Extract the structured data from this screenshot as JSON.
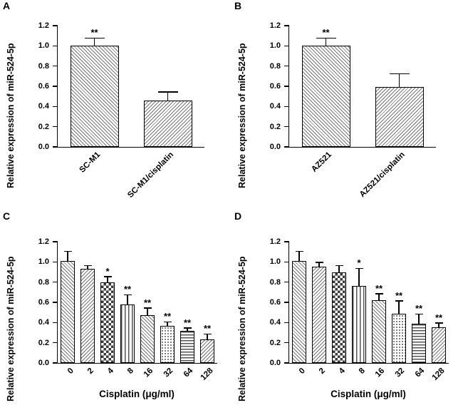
{
  "figure": {
    "background_color": "#ffffff",
    "axis_color": "#000000"
  },
  "chart_data": [
    {
      "panel_label": "A",
      "type": "bar",
      "ylabel": "Relative expression of miR-524-5p",
      "xlabel": "",
      "ylim": [
        0,
        1.2
      ],
      "yticks": [
        "0.0",
        "0.2",
        "0.4",
        "0.6",
        "0.8",
        "1.0",
        "1.2"
      ],
      "categories": [
        "SC-M1",
        "SC-M1/cisplatin"
      ],
      "values": [
        1.0,
        0.46
      ],
      "errors": [
        0.07,
        0.08
      ],
      "annotations": [
        "**",
        ""
      ],
      "patterns": [
        "diag-r",
        "diag-l"
      ]
    },
    {
      "panel_label": "B",
      "type": "bar",
      "ylabel": "Relative expression of miR-524-5p",
      "xlabel": "",
      "ylim": [
        0,
        1.2
      ],
      "yticks": [
        "0.0",
        "0.2",
        "0.4",
        "0.6",
        "0.8",
        "1.0",
        "1.2"
      ],
      "categories": [
        "AZ521",
        "AZ521/cisplatin"
      ],
      "values": [
        1.0,
        0.59
      ],
      "errors": [
        0.07,
        0.13
      ],
      "annotations": [
        "**",
        ""
      ],
      "patterns": [
        "diag-r",
        "diag-l"
      ]
    },
    {
      "panel_label": "C",
      "type": "bar",
      "ylabel": "Relative expression of miR-524-5p",
      "xlabel": "Cisplatin (μg/ml)",
      "ylim": [
        0,
        1.2
      ],
      "yticks": [
        "0.0",
        "0.2",
        "0.4",
        "0.6",
        "0.8",
        "1.0",
        "1.2"
      ],
      "categories": [
        "0",
        "2",
        "4",
        "8",
        "16",
        "32",
        "64",
        "128"
      ],
      "values": [
        1.01,
        0.93,
        0.8,
        0.58,
        0.47,
        0.37,
        0.32,
        0.23
      ],
      "errors": [
        0.09,
        0.03,
        0.05,
        0.09,
        0.07,
        0.03,
        0.02,
        0.05
      ],
      "annotations": [
        "",
        "",
        "*",
        "**",
        "**",
        "**",
        "**",
        "**"
      ],
      "patterns": [
        "diag-r",
        "diag-l",
        "checker",
        "vlines",
        "diag-r",
        "dots",
        "hlines",
        "diag-l"
      ]
    },
    {
      "panel_label": "D",
      "type": "bar",
      "ylabel": "Relative expression of miR-524-5p",
      "xlabel": "Cisplatin (μg/ml)",
      "ylim": [
        0,
        1.2
      ],
      "yticks": [
        "0.0",
        "0.2",
        "0.4",
        "0.6",
        "0.8",
        "1.0",
        "1.2"
      ],
      "categories": [
        "0",
        "2",
        "4",
        "8",
        "16",
        "32",
        "64",
        "128"
      ],
      "values": [
        1.01,
        0.95,
        0.9,
        0.76,
        0.62,
        0.49,
        0.39,
        0.35
      ],
      "errors": [
        0.09,
        0.04,
        0.06,
        0.17,
        0.06,
        0.12,
        0.09,
        0.04
      ],
      "annotations": [
        "",
        "",
        "",
        "*",
        "**",
        "**",
        "**",
        "**"
      ],
      "patterns": [
        "diag-r",
        "diag-l",
        "checker",
        "vlines",
        "diag-r",
        "dots",
        "hlines",
        "diag-l"
      ]
    }
  ]
}
